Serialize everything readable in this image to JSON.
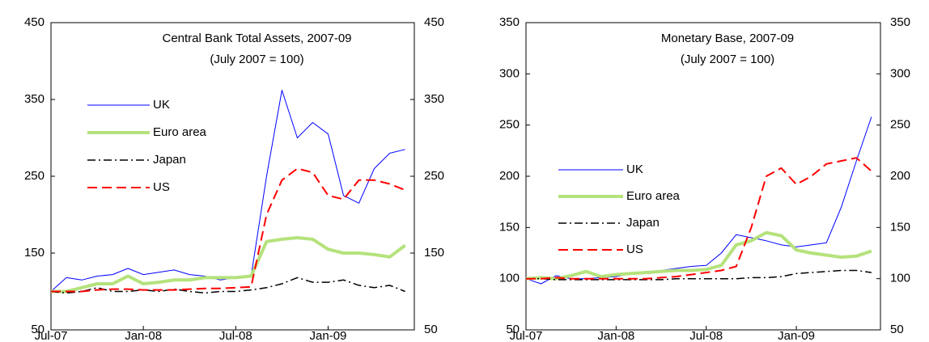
{
  "chart_data": [
    {
      "type": "line",
      "title": "Central Bank Total Assets, 2007-09",
      "subtitle": "(July 2007 = 100)",
      "categories": [
        "Jul-07",
        null,
        null,
        null,
        null,
        null,
        "Jan-08",
        null,
        null,
        null,
        null,
        null,
        "Jul-08",
        null,
        null,
        null,
        null,
        null,
        "Jan-09",
        null,
        null,
        null,
        null,
        null
      ],
      "ylim": [
        50,
        450
      ],
      "yticks": [
        50,
        150,
        250,
        350,
        450
      ],
      "y2lim": [
        50,
        450
      ],
      "y2ticks": [
        50,
        150,
        250,
        350,
        450
      ],
      "legend": "upper left",
      "series": [
        {
          "name": "UK",
          "color": "#0000ff",
          "width": 1,
          "dash": "solid",
          "values": [
            100,
            118,
            115,
            120,
            122,
            130,
            122,
            125,
            128,
            122,
            120,
            115,
            118,
            120,
            250,
            362,
            300,
            320,
            305,
            225,
            215,
            260,
            280,
            285
          ]
        },
        {
          "name": "Euro area",
          "color": "#b5e27c",
          "width": 4,
          "dash": "solid",
          "values": [
            100,
            100,
            105,
            110,
            110,
            120,
            110,
            112,
            115,
            115,
            118,
            118,
            118,
            120,
            165,
            168,
            170,
            168,
            155,
            150,
            150,
            148,
            145,
            160
          ]
        },
        {
          "name": "Japan",
          "color": "#000000",
          "width": 1.5,
          "dash": "dashdot",
          "values": [
            100,
            98,
            100,
            105,
            100,
            100,
            102,
            100,
            103,
            100,
            98,
            100,
            100,
            102,
            105,
            110,
            118,
            112,
            112,
            115,
            108,
            105,
            108,
            100
          ]
        },
        {
          "name": "US",
          "color": "#ff0000",
          "width": 2,
          "dash": "dashed",
          "values": [
            100,
            100,
            100,
            102,
            103,
            103,
            102,
            102,
            102,
            103,
            104,
            104,
            105,
            106,
            200,
            245,
            260,
            255,
            225,
            220,
            245,
            245,
            240,
            232
          ]
        }
      ]
    },
    {
      "type": "line",
      "title": "Monetary Base, 2007-09",
      "subtitle": "(July 2007 = 100)",
      "categories": [
        "Jul-07",
        null,
        null,
        null,
        null,
        null,
        "Jan-08",
        null,
        null,
        null,
        null,
        null,
        "Jul-08",
        null,
        null,
        null,
        null,
        null,
        "Jan-09",
        null,
        null,
        null,
        null,
        null
      ],
      "ylim": [
        50,
        350
      ],
      "yticks": [
        50,
        100,
        150,
        200,
        250,
        300,
        350
      ],
      "y2lim": [
        50,
        350
      ],
      "y2ticks": [
        50,
        100,
        150,
        200,
        250,
        300,
        350
      ],
      "legend": "center left",
      "series": [
        {
          "name": "UK",
          "color": "#0000ff",
          "width": 1,
          "dash": "solid",
          "values": [
            100,
            95,
            103,
            100,
            100,
            101,
            102,
            105,
            107,
            108,
            110,
            112,
            113,
            125,
            143,
            140,
            137,
            133,
            131,
            133,
            135,
            170,
            215,
            258
          ]
        },
        {
          "name": "Euro area",
          "color": "#b5e27c",
          "width": 4,
          "dash": "solid",
          "values": [
            100,
            101,
            100,
            103,
            107,
            102,
            104,
            105,
            106,
            107,
            108,
            108,
            109,
            113,
            133,
            137,
            145,
            142,
            128,
            125,
            123,
            121,
            122,
            127
          ]
        },
        {
          "name": "Japan",
          "color": "#000000",
          "width": 1.5,
          "dash": "dashdot",
          "values": [
            100,
            100,
            99,
            99,
            99,
            99,
            99,
            99,
            99,
            99,
            100,
            100,
            100,
            100,
            100,
            101,
            101,
            102,
            105,
            106,
            107,
            108,
            108,
            106
          ]
        },
        {
          "name": "US",
          "color": "#ff0000",
          "width": 2,
          "dash": "dashed",
          "values": [
            100,
            100,
            101,
            100,
            100,
            100,
            100,
            100,
            100,
            101,
            102,
            104,
            106,
            108,
            112,
            150,
            200,
            208,
            192,
            200,
            212,
            215,
            218,
            205
          ]
        }
      ]
    }
  ]
}
